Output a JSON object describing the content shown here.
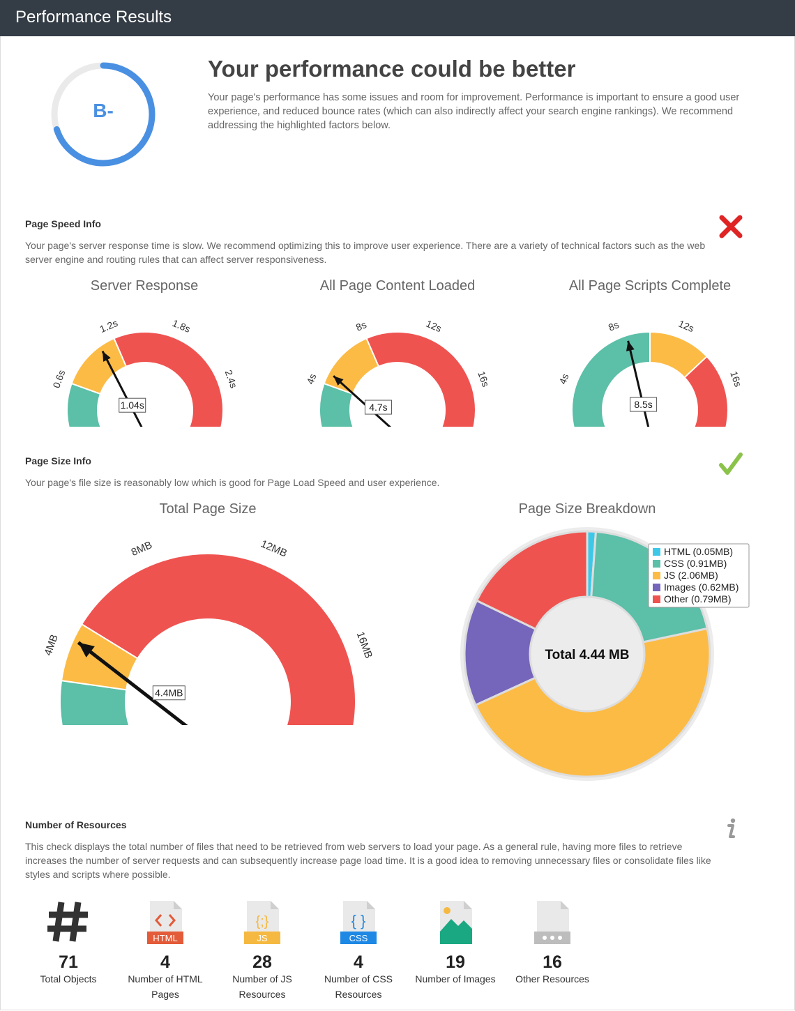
{
  "header": {
    "title": "Performance Results"
  },
  "summary": {
    "grade": "B-",
    "grade_progress": 0.7,
    "headline": "Your performance could be better",
    "text": "Your page's performance has some issues and room for improvement. Performance is important to ensure a good user experience, and reduced bounce rates (which can also indirectly affect your search engine rankings). We recommend addressing the highlighted factors below."
  },
  "page_speed": {
    "title": "Page Speed Info",
    "status": "fail",
    "status_icon": "red-x-icon",
    "text": "Your page's server response time is slow. We recommend optimizing this to improve user experience. There are a variety of technical factors such as the web server engine and routing rules that can affect server responsiveness."
  },
  "page_size": {
    "title": "Page Size Info",
    "status": "pass",
    "status_icon": "green-check-icon",
    "text": "Your page's file size is reasonably low which is good for Page Load Speed and user experience."
  },
  "resources": {
    "title": "Number of Resources",
    "status": "info",
    "status_icon": "info-icon",
    "text": "This check displays the total number of files that need to be retrieved from web servers to load your page. As a general rule, having more files to retrieve increases the number of server requests and can subsequently increase page load time. It is a good idea to removing unnecessary files or consolidate files like styles and scripts where possible.",
    "items": [
      {
        "icon": "hash-icon",
        "count": "71",
        "label": "Total Objects"
      },
      {
        "icon": "html-file-icon",
        "icon_text": "HTML",
        "count": "4",
        "label": "Number of HTML Pages"
      },
      {
        "icon": "js-file-icon",
        "icon_text": "JS",
        "count": "28",
        "label": "Number of JS Resources"
      },
      {
        "icon": "css-file-icon",
        "icon_text": "CSS",
        "count": "4",
        "label": "Number of CSS Resources"
      },
      {
        "icon": "image-file-icon",
        "count": "19",
        "label": "Number of Images"
      },
      {
        "icon": "other-file-icon",
        "count": "16",
        "label": "Other Resources"
      }
    ]
  },
  "colors": {
    "green": "#5cbfa8",
    "yellow": "#fcbb45",
    "red": "#ef5350",
    "cyan": "#3ec8e8",
    "purple": "#7565bb",
    "blue": "#4a90e2"
  },
  "chart_data": [
    {
      "type": "gauge",
      "title": "Server Response",
      "ticks": [
        "0s",
        "0.6s",
        "1.2s",
        "1.8s",
        "2.4s",
        "3.0s"
      ],
      "min": 0,
      "max": 3.0,
      "bands": [
        {
          "from": 0,
          "to": 0.6,
          "color": "green"
        },
        {
          "from": 0.6,
          "to": 1.2,
          "color": "yellow"
        },
        {
          "from": 1.2,
          "to": 3.0,
          "color": "red"
        }
      ],
      "value": 1.04,
      "value_label": "1.04s"
    },
    {
      "type": "gauge",
      "title": "All Page Content Loaded",
      "ticks": [
        "0s",
        "4s",
        "8s",
        "12s",
        "16s",
        "20s"
      ],
      "min": 0,
      "max": 20,
      "bands": [
        {
          "from": 0,
          "to": 4,
          "color": "green"
        },
        {
          "from": 4,
          "to": 8,
          "color": "yellow"
        },
        {
          "from": 8,
          "to": 20,
          "color": "red"
        }
      ],
      "value": 4.7,
      "value_label": "4.7s"
    },
    {
      "type": "gauge",
      "title": "All Page Scripts Complete",
      "ticks": [
        "0s",
        "4s",
        "8s",
        "12s",
        "16s",
        "20s"
      ],
      "min": 0,
      "max": 20,
      "bands": [
        {
          "from": 0,
          "to": 10,
          "color": "green"
        },
        {
          "from": 10,
          "to": 14,
          "color": "yellow"
        },
        {
          "from": 14,
          "to": 20,
          "color": "red"
        }
      ],
      "value": 8.5,
      "value_label": "8.5s"
    },
    {
      "type": "gauge",
      "title": "Total Page Size",
      "ticks": [
        "0MB",
        "4MB",
        "8MB",
        "12MB",
        "16MB",
        "20MB"
      ],
      "min": 0,
      "max": 20,
      "bands": [
        {
          "from": 0,
          "to": 3,
          "color": "green"
        },
        {
          "from": 3,
          "to": 5,
          "color": "yellow"
        },
        {
          "from": 5,
          "to": 20,
          "color": "red"
        }
      ],
      "value": 4.4,
      "value_label": "4.4MB"
    },
    {
      "type": "pie",
      "title": "Page Size Breakdown",
      "center_label": "Total 4.44 MB",
      "legend_position": "top-right",
      "slices": [
        {
          "label": "HTML (0.05MB)",
          "value": 0.05,
          "color": "cyan"
        },
        {
          "label": "CSS (0.91MB)",
          "value": 0.91,
          "color": "green"
        },
        {
          "label": "JS (2.06MB)",
          "value": 2.06,
          "color": "yellow"
        },
        {
          "label": "Images (0.62MB)",
          "value": 0.62,
          "color": "purple"
        },
        {
          "label": "Other (0.79MB)",
          "value": 0.79,
          "color": "red"
        }
      ]
    }
  ]
}
